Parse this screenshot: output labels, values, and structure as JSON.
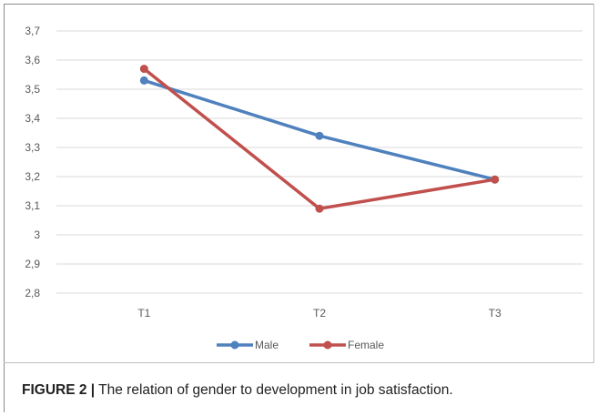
{
  "chart_data": {
    "type": "line",
    "categories": [
      "T1",
      "T2",
      "T3"
    ],
    "series": [
      {
        "name": "Male",
        "values": [
          3.53,
          3.34,
          3.19
        ],
        "color": "#4f81bd"
      },
      {
        "name": "Female",
        "values": [
          3.57,
          3.09,
          3.19
        ],
        "color": "#c0504d"
      }
    ],
    "ylim": [
      2.8,
      3.7
    ],
    "yticks": [
      "3,7",
      "3,6",
      "3,5",
      "3,4",
      "3,3",
      "3,2",
      "3,1",
      "3",
      "2,9",
      "2,8"
    ],
    "ytick_values": [
      3.7,
      3.6,
      3.5,
      3.4,
      3.3,
      3.2,
      3.1,
      3.0,
      2.9,
      2.8
    ],
    "grid": true,
    "legend_position": "bottom"
  },
  "caption": {
    "label": "FIGURE 2 |",
    "text": " The relation of gender to development in job satisfaction."
  }
}
